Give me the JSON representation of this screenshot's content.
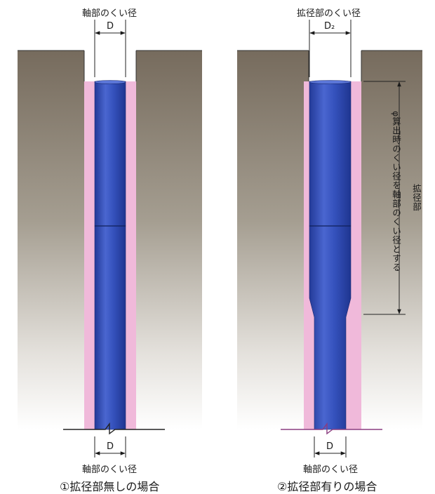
{
  "left": {
    "top_label": "軸部のくい径",
    "top_dim": "D",
    "bottom_dim": "D",
    "bottom_label": "軸部のくい径",
    "caption": "①拡径部無しの場合"
  },
  "right": {
    "top_label": "拡径部のくい径",
    "top_dim": "D₂",
    "bottom_dim": "D",
    "bottom_label": "軸部のくい径",
    "side_label_1": "φ算出時のくい径を軸部のくい径とする",
    "side_label_2": "拡径部",
    "caption": "②拡径部有りの場合"
  },
  "colors": {
    "ground_top": "#7a6e5e",
    "ground_bottom": "#ffffff",
    "pile_blue": "#2f49b0",
    "pile_light": "#6d8ae6",
    "grout_pink": "#f0b9da"
  }
}
